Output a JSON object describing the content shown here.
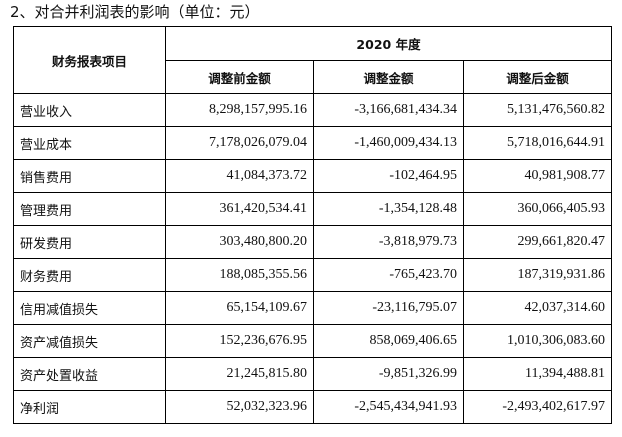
{
  "heading": "2、对合并利润表的影响（单位：元）",
  "table": {
    "item_header": "财务报表项目",
    "year_header": "2020 年度",
    "columns": [
      "调整前金额",
      "调整金额",
      "调整后金额"
    ],
    "rows": [
      {
        "label": "营业收入",
        "values": [
          "8,298,157,995.16",
          "-3,166,681,434.34",
          "5,131,476,560.82"
        ]
      },
      {
        "label": "营业成本",
        "values": [
          "7,178,026,079.04",
          "-1,460,009,434.13",
          "5,718,016,644.91"
        ]
      },
      {
        "label": "销售费用",
        "values": [
          "41,084,373.72",
          "-102,464.95",
          "40,981,908.77"
        ]
      },
      {
        "label": "管理费用",
        "values": [
          "361,420,534.41",
          "-1,354,128.48",
          "360,066,405.93"
        ]
      },
      {
        "label": "研发费用",
        "values": [
          "303,480,800.20",
          "-3,818,979.73",
          "299,661,820.47"
        ]
      },
      {
        "label": "财务费用",
        "values": [
          "188,085,355.56",
          "-765,423.70",
          "187,319,931.86"
        ]
      },
      {
        "label": "信用减值损失",
        "values": [
          "65,154,109.67",
          "-23,116,795.07",
          "42,037,314.60"
        ]
      },
      {
        "label": "资产减值损失",
        "values": [
          "152,236,676.95",
          "858,069,406.65",
          "1,010,306,083.60"
        ]
      },
      {
        "label": "资产处置收益",
        "values": [
          "21,245,815.80",
          "-9,851,326.99",
          "11,394,488.81"
        ]
      },
      {
        "label": "净利润",
        "values": [
          "52,032,323.96",
          "-2,545,434,941.93",
          "-2,493,402,617.97"
        ]
      }
    ]
  }
}
